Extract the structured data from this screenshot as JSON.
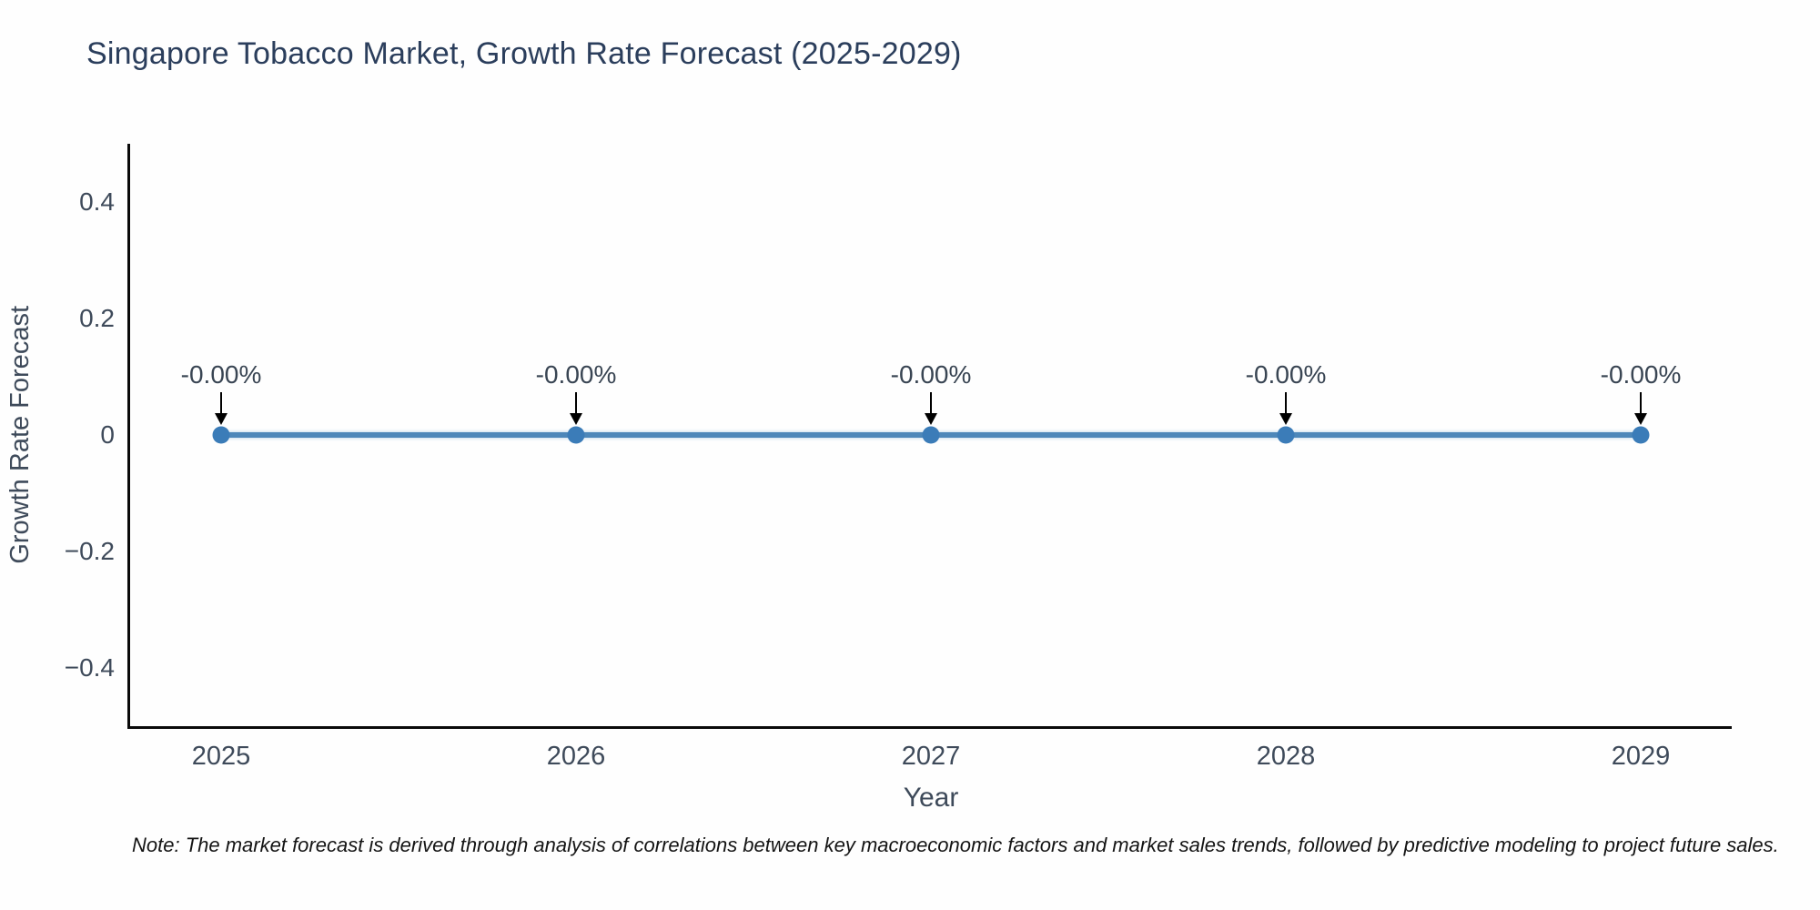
{
  "chart_data": {
    "type": "line",
    "title": "Singapore Tobacco Market, Growth Rate Forecast (2025-2029)",
    "xlabel": "Year",
    "ylabel": "Growth Rate Forecast",
    "categories": [
      "2025",
      "2026",
      "2027",
      "2028",
      "2029"
    ],
    "series": [
      {
        "name": "Growth Rate Forecast",
        "values": [
          0,
          0,
          0,
          0,
          0
        ]
      }
    ],
    "point_labels": [
      "-0.00%",
      "-0.00%",
      "-0.00%",
      "-0.00%",
      "-0.00%"
    ],
    "ylim": [
      -0.5,
      0.5
    ],
    "yticks": [
      {
        "value": 0.4,
        "label": "0.4"
      },
      {
        "value": 0.2,
        "label": "0.2"
      },
      {
        "value": 0,
        "label": "0"
      },
      {
        "value": -0.2,
        "label": "−0.2"
      },
      {
        "value": -0.4,
        "label": "−0.4"
      }
    ],
    "grid": false,
    "legend": "none",
    "colors": {
      "line": "#4d87b9",
      "marker": "#3b7cb8",
      "arrow": "#000000",
      "axis": "#0a0a0a",
      "title_text": "#2b3e5c",
      "tick_text": "#3e4a5a"
    }
  },
  "note": "Note: The market forecast is derived through analysis of correlations between key macroeconomic factors and market sales trends, followed by predictive modeling to project future sales."
}
